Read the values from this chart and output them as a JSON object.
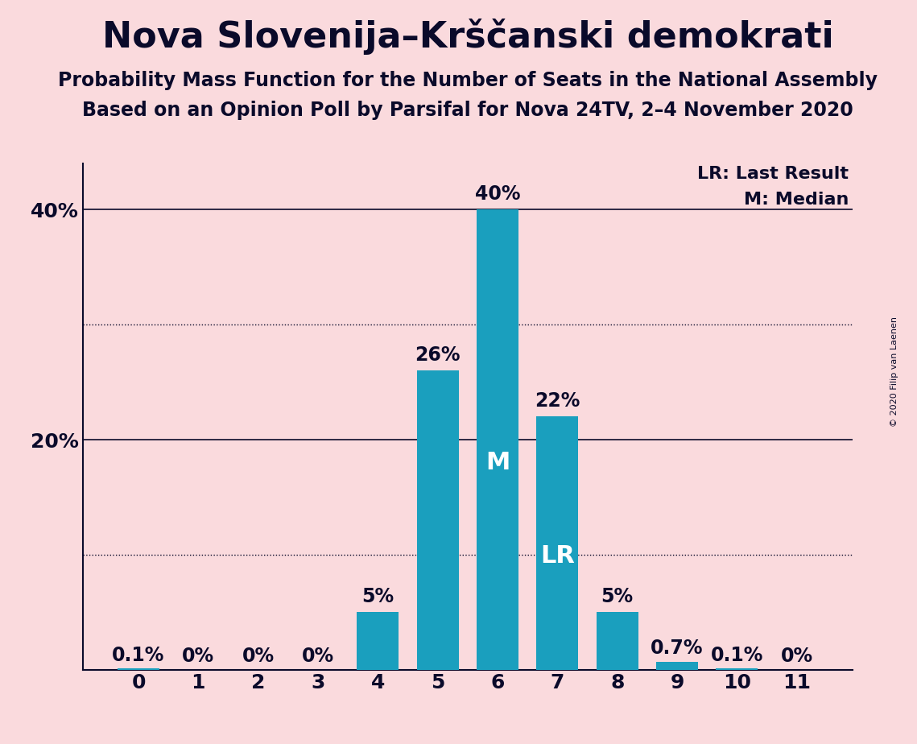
{
  "title": "Nova Slovenija–Krščanski demokrati",
  "subtitle1": "Probability Mass Function for the Number of Seats in the National Assembly",
  "subtitle2": "Based on an Opinion Poll by Parsifal for Nova 24TV, 2–4 November 2020",
  "copyright": "© 2020 Filip van Laenen",
  "categories": [
    0,
    1,
    2,
    3,
    4,
    5,
    6,
    7,
    8,
    9,
    10,
    11
  ],
  "values": [
    0.1,
    0.0,
    0.0,
    0.0,
    5.0,
    26.0,
    40.0,
    22.0,
    5.0,
    0.7,
    0.1,
    0.0
  ],
  "bar_color": "#1a9fbe",
  "background_color": "#fadadd",
  "text_color": "#0a0a2a",
  "bar_labels": [
    "0.1%",
    "0%",
    "0%",
    "0%",
    "5%",
    "26%",
    "40%",
    "22%",
    "5%",
    "0.7%",
    "0.1%",
    "0%"
  ],
  "median_seat": 6,
  "lr_seat": 7,
  "legend_lr": "LR: Last Result",
  "legend_m": "M: Median",
  "ylim": [
    0,
    44
  ],
  "bar_width": 0.7,
  "title_fontsize": 32,
  "subtitle_fontsize": 17,
  "tick_fontsize": 18,
  "legend_fontsize": 16,
  "bar_label_fontsize": 17,
  "inside_label_fontsize": 22
}
